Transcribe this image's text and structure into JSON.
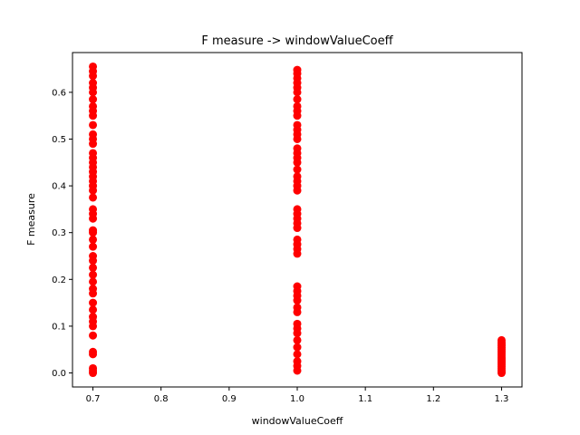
{
  "chart_data": {
    "type": "scatter",
    "title": "F measure -> windowValueCoeff",
    "xlabel": "windowValueCoeff",
    "ylabel": "F measure",
    "xlim": [
      0.67,
      1.33
    ],
    "ylim": [
      -0.03,
      0.685
    ],
    "xticks": [
      0.7,
      0.8,
      0.9,
      1.0,
      1.1,
      1.2,
      1.3
    ],
    "xtick_labels": [
      "0.7",
      "0.8",
      "0.9",
      "1.0",
      "1.1",
      "1.2",
      "1.3"
    ],
    "yticks": [
      0.0,
      0.1,
      0.2,
      0.3,
      0.4,
      0.5,
      0.6
    ],
    "ytick_labels": [
      "0.0",
      "0.1",
      "0.2",
      "0.3",
      "0.4",
      "0.5",
      "0.6"
    ],
    "grid": false,
    "marker_color": "#ff0000",
    "series": [
      {
        "points": [
          [
            0.7,
            0.0
          ],
          [
            0.7,
            0.005
          ],
          [
            0.7,
            0.01
          ],
          [
            0.7,
            0.04
          ],
          [
            0.7,
            0.045
          ],
          [
            0.7,
            0.08
          ],
          [
            0.7,
            0.1
          ],
          [
            0.7,
            0.11
          ],
          [
            0.7,
            0.12
          ],
          [
            0.7,
            0.135
          ],
          [
            0.7,
            0.15
          ],
          [
            0.7,
            0.17
          ],
          [
            0.7,
            0.18
          ],
          [
            0.7,
            0.195
          ],
          [
            0.7,
            0.21
          ],
          [
            0.7,
            0.225
          ],
          [
            0.7,
            0.24
          ],
          [
            0.7,
            0.25
          ],
          [
            0.7,
            0.27
          ],
          [
            0.7,
            0.285
          ],
          [
            0.7,
            0.3
          ],
          [
            0.7,
            0.305
          ],
          [
            0.7,
            0.33
          ],
          [
            0.7,
            0.34
          ],
          [
            0.7,
            0.35
          ],
          [
            0.7,
            0.375
          ],
          [
            0.7,
            0.39
          ],
          [
            0.7,
            0.4
          ],
          [
            0.7,
            0.41
          ],
          [
            0.7,
            0.42
          ],
          [
            0.7,
            0.43
          ],
          [
            0.7,
            0.44
          ],
          [
            0.7,
            0.45
          ],
          [
            0.7,
            0.46
          ],
          [
            0.7,
            0.47
          ],
          [
            0.7,
            0.49
          ],
          [
            0.7,
            0.5
          ],
          [
            0.7,
            0.51
          ],
          [
            0.7,
            0.53
          ],
          [
            0.7,
            0.55
          ],
          [
            0.7,
            0.56
          ],
          [
            0.7,
            0.57
          ],
          [
            0.7,
            0.585
          ],
          [
            0.7,
            0.6
          ],
          [
            0.7,
            0.61
          ],
          [
            0.7,
            0.62
          ],
          [
            0.7,
            0.635
          ],
          [
            0.7,
            0.645
          ],
          [
            0.7,
            0.655
          ],
          [
            1.0,
            0.005
          ],
          [
            1.0,
            0.015
          ],
          [
            1.0,
            0.025
          ],
          [
            1.0,
            0.04
          ],
          [
            1.0,
            0.055
          ],
          [
            1.0,
            0.07
          ],
          [
            1.0,
            0.085
          ],
          [
            1.0,
            0.095
          ],
          [
            1.0,
            0.105
          ],
          [
            1.0,
            0.13
          ],
          [
            1.0,
            0.14
          ],
          [
            1.0,
            0.155
          ],
          [
            1.0,
            0.165
          ],
          [
            1.0,
            0.175
          ],
          [
            1.0,
            0.185
          ],
          [
            1.0,
            0.255
          ],
          [
            1.0,
            0.265
          ],
          [
            1.0,
            0.275
          ],
          [
            1.0,
            0.285
          ],
          [
            1.0,
            0.31
          ],
          [
            1.0,
            0.32
          ],
          [
            1.0,
            0.33
          ],
          [
            1.0,
            0.34
          ],
          [
            1.0,
            0.35
          ],
          [
            1.0,
            0.39
          ],
          [
            1.0,
            0.4
          ],
          [
            1.0,
            0.41
          ],
          [
            1.0,
            0.42
          ],
          [
            1.0,
            0.435
          ],
          [
            1.0,
            0.45
          ],
          [
            1.0,
            0.46
          ],
          [
            1.0,
            0.47
          ],
          [
            1.0,
            0.48
          ],
          [
            1.0,
            0.5
          ],
          [
            1.0,
            0.51
          ],
          [
            1.0,
            0.52
          ],
          [
            1.0,
            0.53
          ],
          [
            1.0,
            0.55
          ],
          [
            1.0,
            0.56
          ],
          [
            1.0,
            0.57
          ],
          [
            1.0,
            0.585
          ],
          [
            1.0,
            0.6
          ],
          [
            1.0,
            0.61
          ],
          [
            1.0,
            0.62
          ],
          [
            1.0,
            0.63
          ],
          [
            1.0,
            0.64
          ],
          [
            1.0,
            0.648
          ],
          [
            1.3,
            0.0
          ],
          [
            1.3,
            0.003
          ],
          [
            1.3,
            0.006
          ],
          [
            1.3,
            0.01
          ],
          [
            1.3,
            0.014
          ],
          [
            1.3,
            0.018
          ],
          [
            1.3,
            0.022
          ],
          [
            1.3,
            0.026
          ],
          [
            1.3,
            0.03
          ],
          [
            1.3,
            0.034
          ],
          [
            1.3,
            0.038
          ],
          [
            1.3,
            0.042
          ],
          [
            1.3,
            0.046
          ],
          [
            1.3,
            0.05
          ],
          [
            1.3,
            0.054
          ],
          [
            1.3,
            0.058
          ],
          [
            1.3,
            0.062
          ],
          [
            1.3,
            0.066
          ],
          [
            1.3,
            0.07
          ]
        ]
      }
    ]
  }
}
